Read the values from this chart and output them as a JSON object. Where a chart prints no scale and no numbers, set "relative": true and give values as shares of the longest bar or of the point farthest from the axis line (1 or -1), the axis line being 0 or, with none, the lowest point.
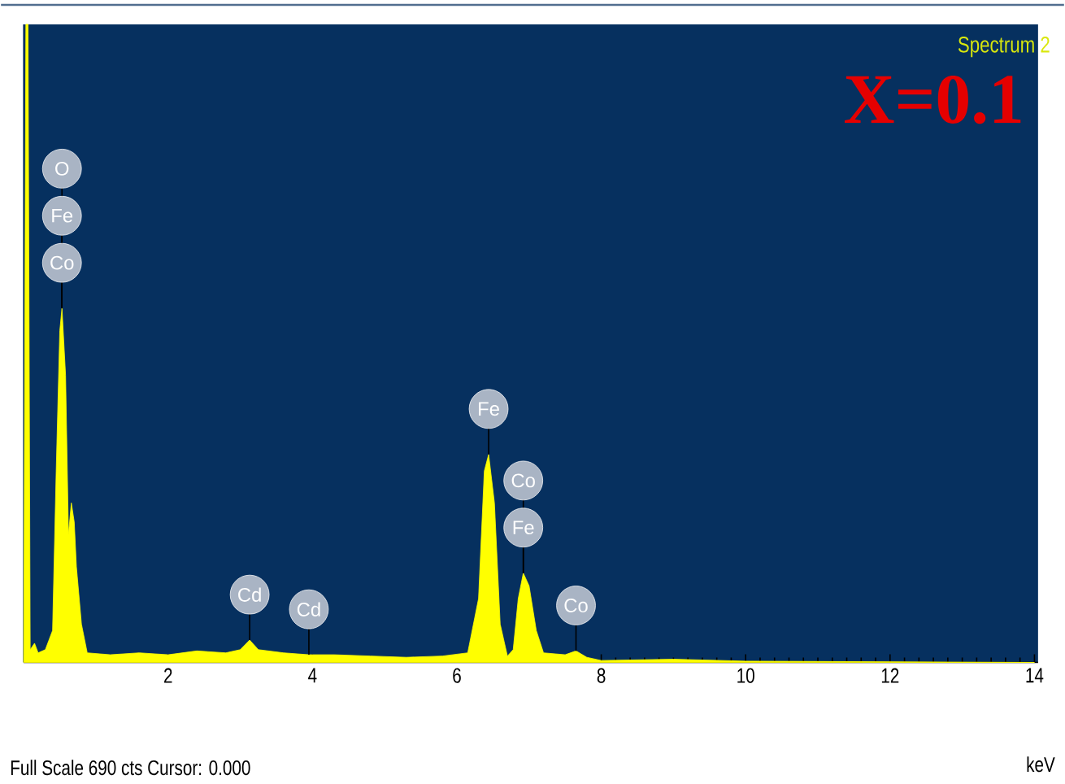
{
  "chart_data": {
    "type": "area",
    "relative": true,
    "xlabel": "keV",
    "color": "#ffff00",
    "x": [
      0.0,
      0.03,
      0.06,
      0.09,
      0.15,
      0.2,
      0.3,
      0.4,
      0.45,
      0.5,
      0.53,
      0.58,
      0.62,
      0.66,
      0.7,
      0.73,
      0.8,
      0.88,
      1.2,
      1.6,
      2.0,
      2.4,
      2.8,
      3.0,
      3.13,
      3.25,
      3.6,
      3.95,
      4.3,
      4.8,
      5.3,
      5.8,
      6.15,
      6.3,
      6.38,
      6.44,
      6.52,
      6.6,
      6.7,
      6.78,
      6.85,
      6.92,
      7.0,
      7.1,
      7.2,
      7.5,
      7.65,
      7.8,
      8.0,
      9.0,
      10.0,
      14.0
    ],
    "values": [
      0.0,
      1.0,
      1.0,
      0.02,
      0.03,
      0.015,
      0.02,
      0.05,
      0.3,
      0.52,
      0.555,
      0.45,
      0.2,
      0.25,
      0.22,
      0.15,
      0.06,
      0.015,
      0.012,
      0.015,
      0.012,
      0.018,
      0.015,
      0.02,
      0.035,
      0.02,
      0.015,
      0.012,
      0.012,
      0.01,
      0.008,
      0.01,
      0.015,
      0.1,
      0.3,
      0.326,
      0.25,
      0.06,
      0.01,
      0.02,
      0.1,
      0.14,
      0.12,
      0.05,
      0.015,
      0.012,
      0.018,
      0.008,
      0.003,
      0.005,
      0.002,
      0.0
    ],
    "xlim": [
      0,
      14.05
    ],
    "xticks": [
      2,
      4,
      6,
      8,
      10,
      12,
      14
    ],
    "annotations": [
      "Spectrum 2",
      "X=0.1",
      "Full Scale 690 cts Cursor: 0.000",
      {
        "text": "Co",
        "x": 0.53,
        "y": 0.555
      },
      {
        "text": "Fe",
        "x": 0.53,
        "y": 0.555
      },
      {
        "text": "O",
        "x": 0.53,
        "y": 0.555
      },
      {
        "text": "Cd",
        "x": 3.13,
        "y": 0.035
      },
      {
        "text": "Cd",
        "x": 3.95,
        "y": 0.012
      },
      {
        "text": "Fe",
        "x": 6.44,
        "y": 0.326
      },
      {
        "text": "Fe",
        "x": 6.92,
        "y": 0.14
      },
      {
        "text": "Co",
        "x": 6.92,
        "y": 0.14
      },
      {
        "text": "Co",
        "x": 7.65,
        "y": 0.018
      }
    ]
  }
}
